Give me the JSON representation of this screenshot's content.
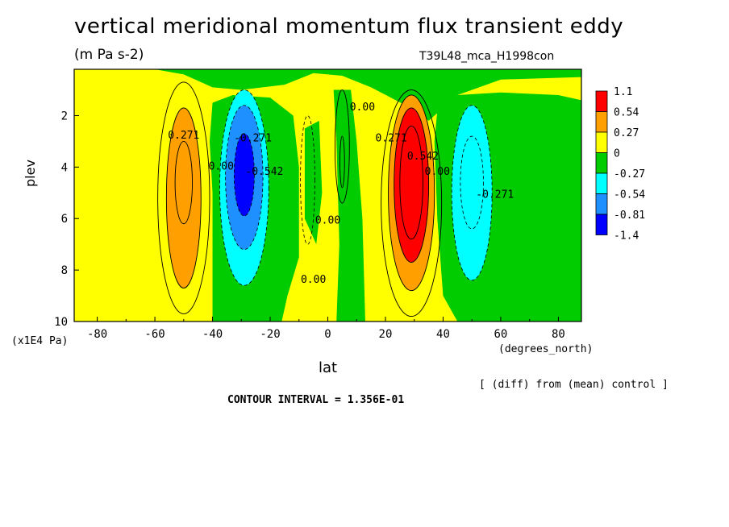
{
  "header": {
    "title": "vertical meridional momentum flux transient eddy",
    "units": "(m Pa s-2)",
    "run": "T39L48_mca_H1998con"
  },
  "footer": {
    "diff_note": "[ (diff) from (mean) control ]",
    "contour_interval": "CONTOUR INTERVAL = 1.356E-01"
  },
  "colors": {
    "red": "#ff0000",
    "orange": "#ff9f00",
    "yellow": "#ffff00",
    "green": "#00cc00",
    "cyan": "#00ffff",
    "lightblue": "#1e90ff",
    "blue": "#0000ff"
  },
  "chart_data": {
    "type": "heatmap",
    "title": "vertical meridional momentum flux transient eddy",
    "subtitle": "(m Pa s-2)",
    "xlabel": "lat",
    "x_unit_label": "(degrees_north)",
    "ylabel": "plev",
    "y_unit_label": "(x1E4 Pa)",
    "xlim": [
      -88,
      88
    ],
    "ylim": [
      0.2,
      10
    ],
    "y_inverted": true,
    "x_ticks": [
      "-80",
      "-60",
      "-40",
      "-20",
      "0",
      "20",
      "40",
      "60",
      "80"
    ],
    "y_ticks": [
      "2",
      "4",
      "6",
      "8",
      "10"
    ],
    "legend": {
      "placement": "right",
      "labels": [
        "1.1",
        "0.54",
        "0.27",
        "0",
        "-0.27",
        "-0.54",
        "-0.81",
        "-1.4"
      ],
      "colors": [
        "#ff0000",
        "#ff9f00",
        "#ffff00",
        "#00cc00",
        "#00ffff",
        "#1e90ff",
        "#0000ff"
      ]
    },
    "contour_labels": [
      {
        "text": "0.271",
        "lat": -50,
        "plev": 2.9
      },
      {
        "text": "0.00",
        "lat": -37,
        "plev": 4.1
      },
      {
        "text": "-0.271",
        "lat": -26,
        "plev": 3.0
      },
      {
        "text": "-0.542",
        "lat": -22,
        "plev": 4.3
      },
      {
        "text": "0.00",
        "lat": 0,
        "plev": 6.2
      },
      {
        "text": "0.00",
        "lat": -5,
        "plev": 8.5
      },
      {
        "text": "0.00",
        "lat": 12,
        "plev": 1.8
      },
      {
        "text": "0.271",
        "lat": 22,
        "plev": 3.0
      },
      {
        "text": "0.542",
        "lat": 33,
        "plev": 3.7
      },
      {
        "text": "0.00",
        "lat": 38,
        "plev": 4.3
      },
      {
        "text": "-0.271",
        "lat": 58,
        "plev": 5.2
      }
    ]
  }
}
